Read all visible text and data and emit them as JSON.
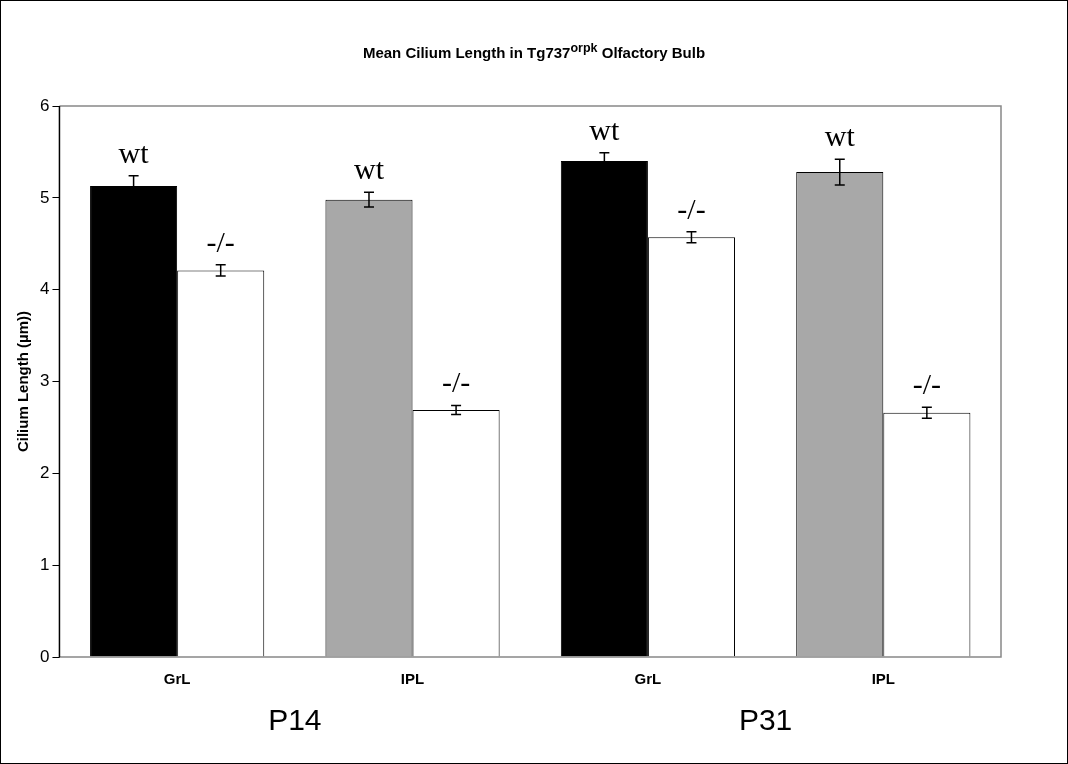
{
  "chart_data": {
    "type": "bar",
    "title": "Mean Cilium Length in Tg737$^{orpk}$ Olfactory Bulb",
    "ylabel": "Cilium Length (µm))",
    "categories": [
      "GrL",
      "IPL",
      "GrL",
      "IPL"
    ],
    "series": [
      {
        "name": "wt",
        "colors": [
          "#000000",
          "#a8a8a8",
          "#000000",
          "#a8a8a8"
        ],
        "values": [
          5.13,
          4.98,
          5.4,
          5.28
        ],
        "errors": [
          0.11,
          0.08,
          0.09,
          0.14
        ]
      },
      {
        "name": "-/-",
        "color": "#ffffff",
        "values": [
          4.21,
          2.69,
          4.57,
          2.66
        ],
        "errors": [
          0.06,
          0.05,
          0.06,
          0.06
        ]
      }
    ],
    "ylim": [
      0,
      6
    ],
    "yticks": [
      0,
      1,
      2,
      3,
      4,
      5,
      6
    ],
    "grid": false,
    "legend": false,
    "annotations": [
      "P14",
      "P31"
    ]
  }
}
